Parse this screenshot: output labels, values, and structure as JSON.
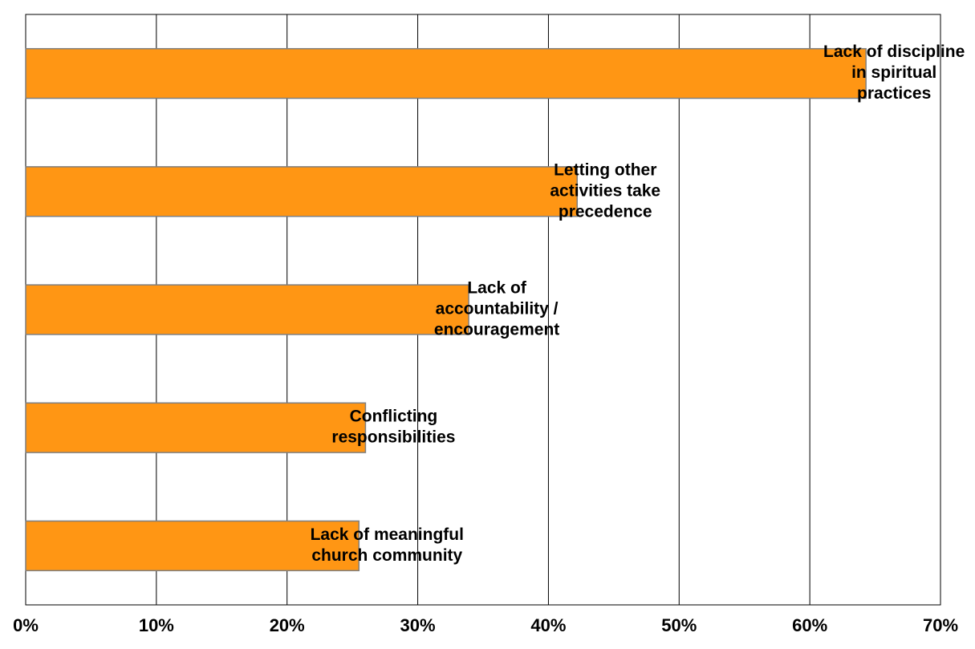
{
  "chart_data": {
    "type": "bar",
    "orientation": "horizontal",
    "categories": [
      [
        "Lack of discipline",
        "in spiritual",
        "practices"
      ],
      [
        "Letting other",
        "activities take",
        "precedence"
      ],
      [
        "Lack of",
        "accountability /",
        "encouragement"
      ],
      [
        "Conflicting",
        "responsibilities"
      ],
      [
        "Lack of meaningful",
        "church community"
      ]
    ],
    "values": [
      64.3,
      42.2,
      33.9,
      26.0,
      25.5
    ],
    "value_unit": "%",
    "xlim": [
      0,
      70
    ],
    "xticks": [
      "0%",
      "10%",
      "20%",
      "30%",
      "40%",
      "50%",
      "60%",
      "70%"
    ],
    "grid": "vertical",
    "bar_color": "#FF9614",
    "bar_edge_color": "#7f7f7f",
    "title": "",
    "xlabel": "",
    "ylabel": ""
  }
}
